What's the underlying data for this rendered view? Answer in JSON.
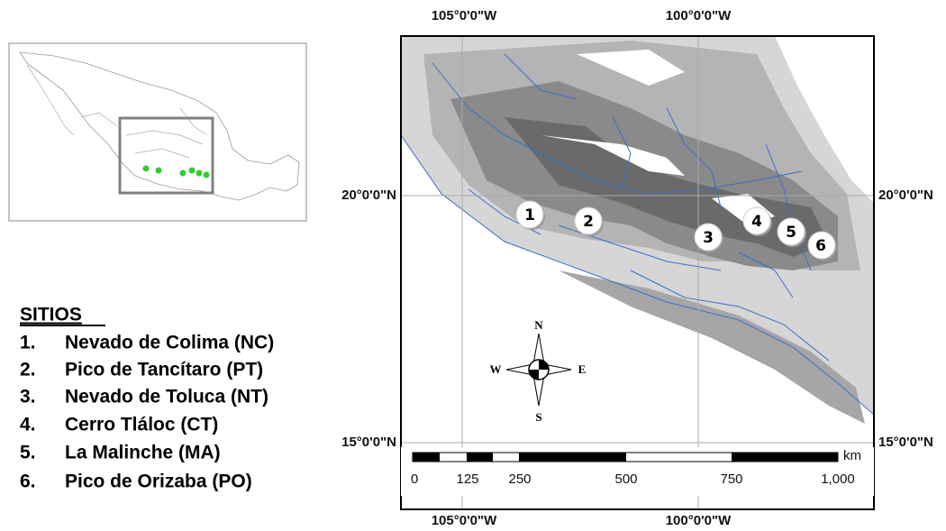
{
  "graticule": {
    "top": [
      "105°0'0\"W",
      "100°0'0\"W"
    ],
    "bottom": [
      "105°0'0\"W",
      "100°0'0\"W"
    ],
    "left": [
      "20°0'0\"N",
      "15°0'0\"N"
    ],
    "right": [
      "20°0'0\"N",
      "15°0'0\"N"
    ]
  },
  "sites": {
    "markers": [
      "1",
      "2",
      "3",
      "4",
      "5",
      "6"
    ]
  },
  "legend": {
    "title": "SITIOS",
    "items": [
      {
        "number": "1.",
        "name": "Nevado de Colima (NC)"
      },
      {
        "number": "2.",
        "name": "Pico de Tancítaro (PT)"
      },
      {
        "number": "3.",
        "name": "Nevado de Toluca (NT)"
      },
      {
        "number": "4.",
        "name": "Cerro Tláloc (CT)"
      },
      {
        "number": "5.",
        "name": "La Malinche (MA)"
      },
      {
        "number": "6.",
        "name": "Pico de Orizaba (PO)"
      }
    ]
  },
  "compass": {
    "north": "N",
    "south": "S",
    "east": "E",
    "west": "W"
  },
  "scale_bar": {
    "unit": "km",
    "labels": [
      "0",
      "125",
      "250",
      "500",
      "750",
      "1,000"
    ]
  }
}
